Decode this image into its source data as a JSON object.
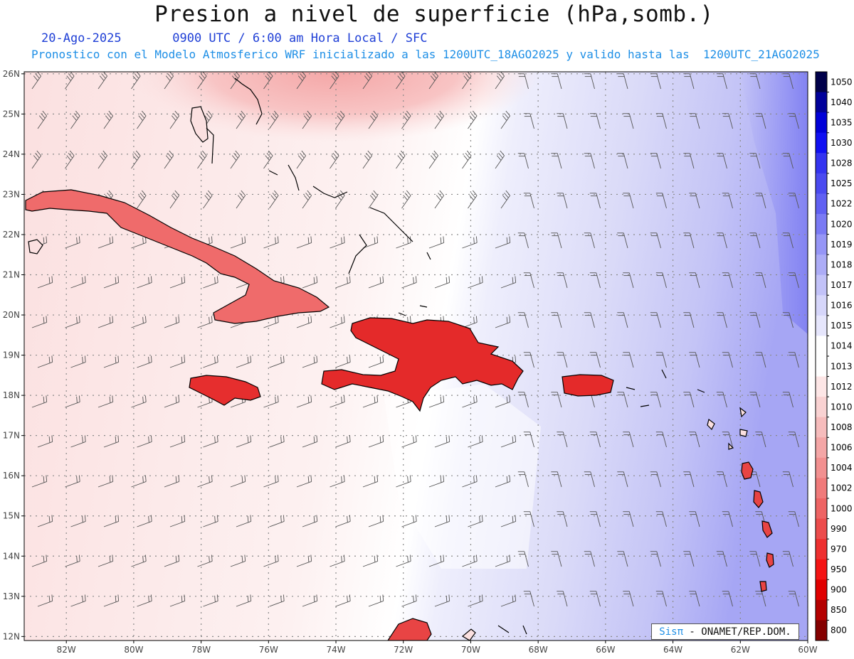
{
  "title": "Presion a nivel de superficie (hPa,somb.)",
  "date": "20-Ago-2025",
  "time_label": "0900 UTC / 6:00 am Hora Local / SFC",
  "forecast_label": "Pronostico con el Modelo Atmosferico WRF inicializado a las 1200UTC_18AGO2025 y valido hasta las  1200UTC_21AGO2025",
  "credit": {
    "brand": "Sisπ",
    "text": " - ONAMET/REP.DOM."
  },
  "axes": {
    "lon_labels": [
      "82W",
      "80W",
      "78W",
      "76W",
      "74W",
      "72W",
      "70W",
      "68W",
      "66W",
      "64W",
      "62W",
      "60W"
    ],
    "lat_labels": [
      "26N",
      "25N",
      "24N",
      "23N",
      "22N",
      "21N",
      "20N",
      "19N",
      "18N",
      "17N",
      "16N",
      "15N",
      "14N",
      "13N",
      "12N"
    ],
    "lon_range": [
      -83.25,
      -60.0
    ],
    "lat_range": [
      11.9,
      26.05
    ]
  },
  "colorbar": {
    "levels": [
      "1050",
      "1040",
      "1035",
      "1030",
      "1028",
      "1025",
      "1022",
      "1020",
      "1019",
      "1018",
      "1017",
      "1016",
      "1015",
      "1014",
      "1013",
      "1012",
      "1010",
      "1008",
      "1006",
      "1004",
      "1002",
      "1000",
      "990",
      "970",
      "950",
      "900",
      "850",
      "800"
    ],
    "colors": [
      "#00004a",
      "#00009a",
      "#0000d8",
      "#1010f2",
      "#3434f0",
      "#4a4af0",
      "#6060f2",
      "#7a7af4",
      "#9696f6",
      "#acacf6",
      "#c2c2f8",
      "#d6d6fa",
      "#e6e6fc",
      "#ffffff",
      "#ffffff",
      "#fde6e6",
      "#f9d2d2",
      "#f6bcbc",
      "#f4a6a6",
      "#f29090",
      "#f07a7a",
      "#ee6464",
      "#ec4c4c",
      "#ee3030",
      "#f41414",
      "#e00000",
      "#b40000",
      "#840000"
    ]
  },
  "colors": {
    "land_high": "#e32a2a",
    "outline": "#000000",
    "grid": "#8a8a8a"
  }
}
